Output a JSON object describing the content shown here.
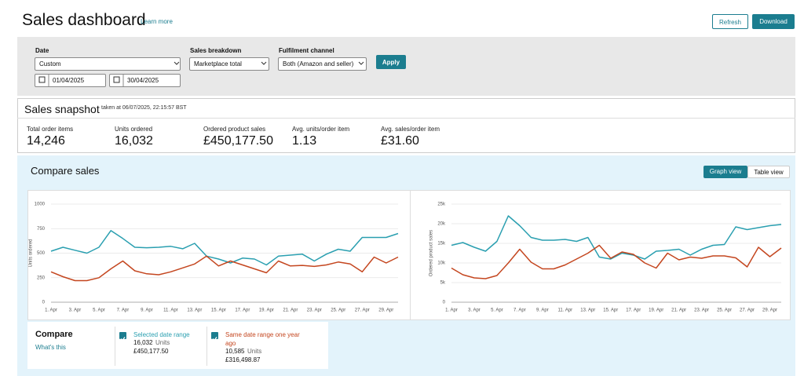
{
  "header": {
    "title": "Sales dashboard",
    "learn_more": "Learn more",
    "refresh": "Refresh",
    "download": "Download"
  },
  "filters": {
    "date_label": "Date",
    "date_value": "Custom",
    "start_date": "01/04/2025",
    "end_date": "30/04/2025",
    "breakdown_label": "Sales breakdown",
    "breakdown_value": "Marketplace total",
    "fulfilment_label": "Fulfilment channel",
    "fulfilment_value": "Both (Amazon and seller)",
    "apply": "Apply"
  },
  "snapshot": {
    "title": "Sales snapshot",
    "taken": "taken at 06/07/2025, 22:15:57 BST",
    "metrics": [
      {
        "label": "Total order items",
        "value": "14,246"
      },
      {
        "label": "Units ordered",
        "value": "16,032"
      },
      {
        "label": "Ordered product sales",
        "value": "£450,177.50"
      },
      {
        "label": "Avg. units/order item",
        "value": "1.13"
      },
      {
        "label": "Avg. sales/order item",
        "value": "£31.60"
      }
    ]
  },
  "compare": {
    "title": "Compare sales",
    "graph_view": "Graph view",
    "table_view": "Table view",
    "heading": "Compare",
    "whats_this": "What's this",
    "ranges": [
      {
        "name": "Selected date range",
        "units": "16,032",
        "units_label": "Units",
        "sales": "£450,177.50"
      },
      {
        "name": "Same date range one year ago",
        "units": "10,585",
        "units_label": "Units",
        "sales": "£316,498.87"
      }
    ]
  },
  "chart_data": [
    {
      "type": "line",
      "y_label": "Units ordered",
      "categories": [
        "1. Apr",
        null,
        "3. Apr",
        null,
        "5. Apr",
        null,
        "7. Apr",
        null,
        "9. Apr",
        null,
        "11. Apr",
        null,
        "13. Apr",
        null,
        "15. Apr",
        null,
        "17. Apr",
        null,
        "19. Apr",
        null,
        "21. Apr",
        null,
        "23. Apr",
        null,
        "25. Apr",
        null,
        "27. Apr",
        null,
        "29. Apr",
        null
      ],
      "series": [
        {
          "name": "Selected date range",
          "color": "#2a9fb0",
          "values": [
            520,
            560,
            530,
            500,
            560,
            730,
            650,
            560,
            555,
            560,
            570,
            545,
            600,
            470,
            440,
            400,
            450,
            440,
            380,
            470,
            480,
            490,
            420,
            490,
            540,
            520,
            660,
            660,
            660,
            700
          ]
        },
        {
          "name": "Same date range one year ago",
          "color": "#c4461f",
          "values": [
            310,
            260,
            220,
            220,
            250,
            340,
            420,
            320,
            290,
            280,
            310,
            350,
            390,
            470,
            370,
            420,
            380,
            340,
            300,
            420,
            370,
            375,
            365,
            380,
            410,
            390,
            310,
            460,
            400,
            460
          ]
        }
      ],
      "ylim": [
        0,
        1000
      ],
      "yticks": [
        0,
        250,
        500,
        750,
        1000
      ],
      "grid": true
    },
    {
      "type": "line",
      "y_label": "Ordered product sales",
      "categories": [
        "1. Apr",
        null,
        "3. Apr",
        null,
        "5. Apr",
        null,
        "7. Apr",
        null,
        "9. Apr",
        null,
        "11. Apr",
        null,
        "13. Apr",
        null,
        "15. Apr",
        null,
        "17. Apr",
        null,
        "19. Apr",
        null,
        "21. Apr",
        null,
        "23. Apr",
        null,
        "25. Apr",
        null,
        "27. Apr",
        null,
        "29. Apr",
        null
      ],
      "series": [
        {
          "name": "Selected date range",
          "color": "#2a9fb0",
          "values": [
            14500,
            15200,
            14000,
            13000,
            15500,
            22000,
            19500,
            16500,
            15800,
            15800,
            16000,
            15500,
            16500,
            11500,
            11000,
            12500,
            12000,
            11000,
            13000,
            13200,
            13500,
            12000,
            13500,
            14500,
            14700,
            19200,
            18500,
            19000,
            19500,
            19800
          ]
        },
        {
          "name": "Same date range one year ago",
          "color": "#c4461f",
          "values": [
            8700,
            7000,
            6200,
            6000,
            6800,
            10000,
            13500,
            10200,
            8500,
            8500,
            9500,
            11000,
            12500,
            14500,
            11200,
            12800,
            12200,
            10000,
            8700,
            12500,
            10800,
            11500,
            11200,
            11800,
            11800,
            11300,
            9000,
            14000,
            11600,
            13800
          ]
        }
      ],
      "ylim": [
        0,
        25000
      ],
      "yticks": [
        0,
        {
          "value": 5000,
          "label": "5k"
        },
        {
          "value": 10000,
          "label": "10k"
        },
        {
          "value": 15000,
          "label": "15k"
        },
        {
          "value": 20000,
          "label": "20k"
        },
        {
          "value": 25000,
          "label": "25k"
        }
      ],
      "grid": true
    }
  ]
}
